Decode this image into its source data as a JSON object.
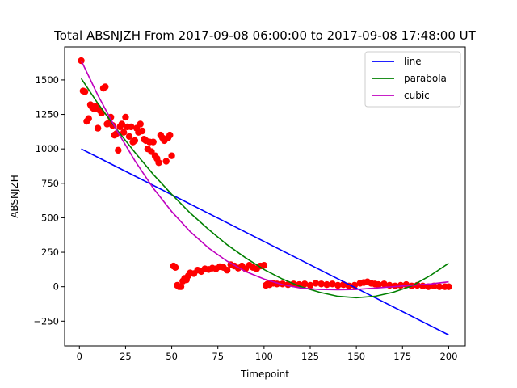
{
  "chart_data": {
    "type": "scatter",
    "title": "Total ABSNJZH From 2017-09-08 06:00:00 to 2017-09-08 17:48:00 UT",
    "xlabel": "Timepoint",
    "ylabel": "ABSNJZH",
    "xlim": [
      -8,
      209
    ],
    "ylim": [
      -430,
      1740
    ],
    "xticks": [
      0,
      25,
      50,
      75,
      100,
      125,
      150,
      175,
      200
    ],
    "yticks": [
      -250,
      0,
      250,
      500,
      750,
      1000,
      1250,
      1500
    ],
    "grid": false,
    "legend_position": "top-right",
    "observed": {
      "color": "#ff0000",
      "points": [
        [
          1,
          1640
        ],
        [
          2,
          1420
        ],
        [
          3,
          1415
        ],
        [
          4,
          1200
        ],
        [
          5,
          1220
        ],
        [
          6,
          1320
        ],
        [
          7,
          1300
        ],
        [
          8,
          1290
        ],
        [
          9,
          1310
        ],
        [
          10,
          1150
        ],
        [
          11,
          1280
        ],
        [
          12,
          1260
        ],
        [
          13,
          1440
        ],
        [
          14,
          1450
        ],
        [
          15,
          1180
        ],
        [
          16,
          1190
        ],
        [
          17,
          1230
        ],
        [
          18,
          1170
        ],
        [
          19,
          1100
        ],
        [
          20,
          1110
        ],
        [
          21,
          990
        ],
        [
          22,
          1160
        ],
        [
          23,
          1180
        ],
        [
          24,
          1120
        ],
        [
          25,
          1230
        ],
        [
          26,
          1160
        ],
        [
          27,
          1090
        ],
        [
          28,
          1160
        ],
        [
          29,
          1050
        ],
        [
          30,
          1060
        ],
        [
          31,
          1150
        ],
        [
          32,
          1120
        ],
        [
          33,
          1180
        ],
        [
          34,
          1130
        ],
        [
          35,
          1070
        ],
        [
          36,
          1060
        ],
        [
          37,
          1000
        ],
        [
          38,
          1050
        ],
        [
          39,
          980
        ],
        [
          40,
          1050
        ],
        [
          41,
          950
        ],
        [
          42,
          930
        ],
        [
          43,
          900
        ],
        [
          44,
          1100
        ],
        [
          45,
          1080
        ],
        [
          46,
          1060
        ],
        [
          47,
          910
        ],
        [
          48,
          1080
        ],
        [
          49,
          1100
        ],
        [
          50,
          950
        ],
        [
          51,
          150
        ],
        [
          52,
          140
        ],
        [
          53,
          10
        ],
        [
          54,
          0
        ],
        [
          55,
          0
        ],
        [
          56,
          40
        ],
        [
          57,
          60
        ],
        [
          58,
          50
        ],
        [
          59,
          80
        ],
        [
          60,
          100
        ],
        [
          62,
          95
        ],
        [
          64,
          120
        ],
        [
          66,
          110
        ],
        [
          68,
          130
        ],
        [
          70,
          125
        ],
        [
          72,
          135
        ],
        [
          74,
          130
        ],
        [
          76,
          145
        ],
        [
          78,
          140
        ],
        [
          80,
          120
        ],
        [
          82,
          160
        ],
        [
          84,
          150
        ],
        [
          86,
          135
        ],
        [
          88,
          150
        ],
        [
          90,
          130
        ],
        [
          92,
          155
        ],
        [
          94,
          140
        ],
        [
          96,
          130
        ],
        [
          98,
          150
        ],
        [
          100,
          155
        ],
        [
          101,
          10
        ],
        [
          102,
          20
        ],
        [
          103,
          15
        ],
        [
          105,
          25
        ],
        [
          107,
          20
        ],
        [
          110,
          20
        ],
        [
          113,
          15
        ],
        [
          116,
          20
        ],
        [
          119,
          15
        ],
        [
          122,
          20
        ],
        [
          125,
          10
        ],
        [
          128,
          25
        ],
        [
          131,
          20
        ],
        [
          134,
          15
        ],
        [
          137,
          20
        ],
        [
          140,
          10
        ],
        [
          143,
          15
        ],
        [
          146,
          5
        ],
        [
          149,
          10
        ],
        [
          152,
          25
        ],
        [
          154,
          30
        ],
        [
          156,
          35
        ],
        [
          158,
          25
        ],
        [
          160,
          20
        ],
        [
          162,
          15
        ],
        [
          165,
          20
        ],
        [
          168,
          10
        ],
        [
          171,
          5
        ],
        [
          174,
          10
        ],
        [
          177,
          15
        ],
        [
          180,
          5
        ],
        [
          183,
          10
        ],
        [
          186,
          5
        ],
        [
          189,
          0
        ],
        [
          192,
          5
        ],
        [
          195,
          0
        ],
        [
          198,
          0
        ],
        [
          200,
          0
        ]
      ]
    },
    "series": [
      {
        "name": "line",
        "color": "#0000ff",
        "x": [
          1,
          200
        ],
        "y": [
          1000,
          -350
        ]
      },
      {
        "name": "parabola",
        "color": "#008000",
        "x": [
          1,
          10,
          20,
          30,
          40,
          50,
          60,
          70,
          80,
          90,
          100,
          110,
          120,
          130,
          140,
          150,
          160,
          170,
          180,
          190,
          200
        ],
        "y": [
          1510,
          1330,
          1145,
          975,
          815,
          670,
          535,
          415,
          305,
          210,
          125,
          55,
          0,
          -40,
          -70,
          -80,
          -70,
          -40,
          5,
          80,
          170
        ]
      },
      {
        "name": "cubic",
        "color": "#bf00bf",
        "x": [
          1,
          10,
          20,
          30,
          40,
          50,
          60,
          70,
          80,
          90,
          100,
          110,
          120,
          130,
          140,
          150,
          160,
          170,
          180,
          190,
          200
        ],
        "y": [
          1640,
          1390,
          1140,
          915,
          715,
          545,
          400,
          280,
          185,
          110,
          55,
          15,
          -10,
          -20,
          -22,
          -20,
          -10,
          0,
          10,
          20,
          35
        ]
      }
    ]
  }
}
